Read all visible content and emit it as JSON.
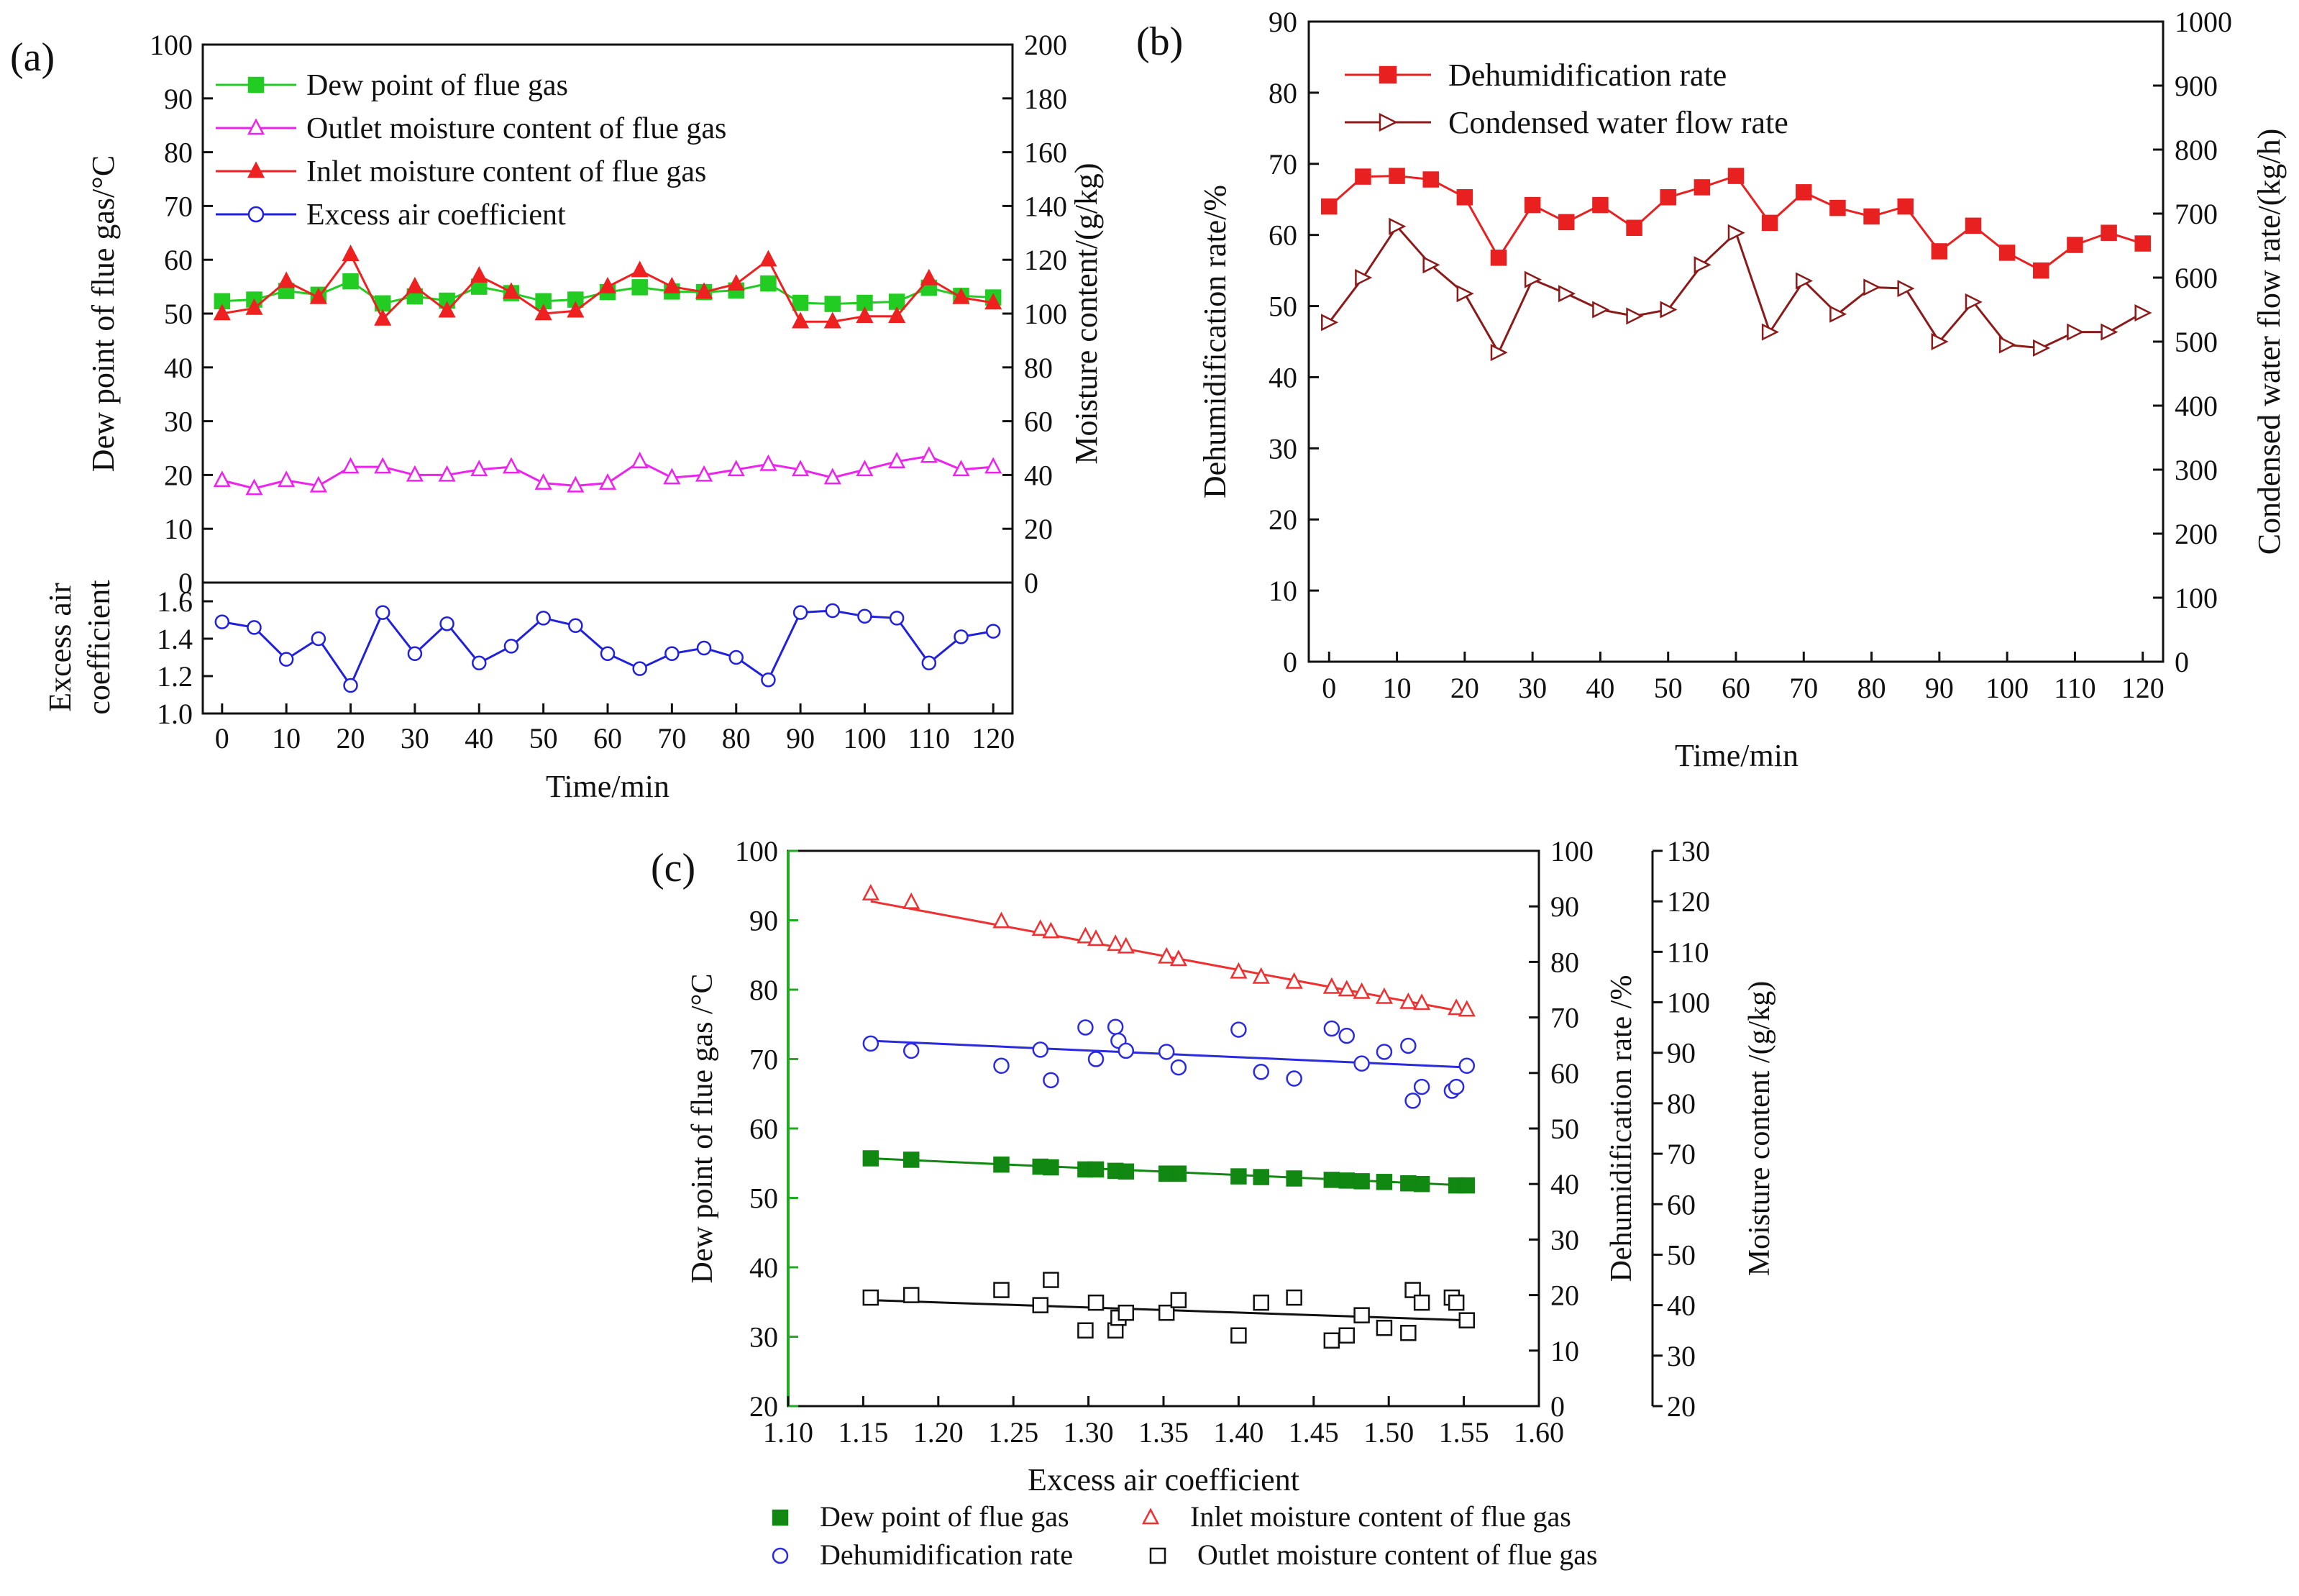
{
  "colors": {
    "dew": "#22cc22",
    "outlet": "#ee22ee",
    "inlet": "#ee2020",
    "excess": "#2020dd",
    "dehum": "#e82020",
    "condensed": "#8b1a1a",
    "c_dew": "#118811",
    "c_inlet": "#ee3030",
    "c_dehum": "#2a2ae0",
    "c_outlet": "#111111",
    "axis": "#111111",
    "c_leftaxis": "#22aa22"
  },
  "chart_data": [
    {
      "id": "a",
      "panel_label": "(a)",
      "type": "line",
      "x": [
        0,
        5,
        10,
        15,
        20,
        25,
        30,
        35,
        40,
        45,
        50,
        55,
        60,
        65,
        70,
        75,
        80,
        85,
        90,
        95,
        100,
        105,
        110,
        115,
        120
      ],
      "xlabel": "Time/min",
      "xticks": [
        "0",
        "10",
        "20",
        "30",
        "40",
        "50",
        "60",
        "70",
        "80",
        "90",
        "100",
        "110",
        "120"
      ],
      "xlim": [
        -3,
        123
      ],
      "top": {
        "ylabel_left": "Dew point of flue gas/°C",
        "ylabel_right": "Moisture content/(g/kg)",
        "ylim_left": [
          0,
          100
        ],
        "ylim_right": [
          0,
          200
        ],
        "yticks_left": [
          "0",
          "10",
          "20",
          "30",
          "40",
          "50",
          "60",
          "70",
          "80",
          "90",
          "100"
        ],
        "yticks_right": [
          "0",
          "20",
          "40",
          "60",
          "80",
          "100",
          "120",
          "140",
          "160",
          "180",
          "200"
        ],
        "series": [
          {
            "name": "Dew point of flue gas",
            "axis": "left",
            "marker": "square",
            "values": [
              52.3,
              52.6,
              54.2,
              53.5,
              56.0,
              51.9,
              53.2,
              52.4,
              55.0,
              53.8,
              52.3,
              52.6,
              54.0,
              54.9,
              54.1,
              54.0,
              54.3,
              55.6,
              52.0,
              51.8,
              52.0,
              52.2,
              54.8,
              53.3,
              53.0
            ]
          },
          {
            "name": "Outlet moisture content of flue gas",
            "axis": "right",
            "marker": "triangle-open",
            "values": [
              38,
              35,
              38,
              36,
              43,
              43,
              40,
              40,
              42,
              43,
              37,
              36,
              37,
              45,
              39,
              40,
              42,
              44,
              42,
              39,
              42,
              45,
              47,
              42,
              43
            ]
          },
          {
            "name": "Inlet moisture content of flue gas",
            "axis": "right",
            "marker": "triangle",
            "values": [
              100,
              102,
              112,
              106,
              122,
              98,
              110,
              101,
              114,
              108,
              100,
              101,
              110,
              116,
              110,
              108,
              111,
              120,
              97,
              97,
              99,
              99,
              113,
              106,
              104
            ]
          }
        ]
      },
      "bottom": {
        "ylabel": "Excess air coefficient",
        "ylim": [
          1.0,
          1.7
        ],
        "yticks": [
          "1.0",
          "1.2",
          "1.4",
          "1.6"
        ],
        "series": [
          {
            "name": "Excess air coefficient",
            "marker": "circle-open",
            "values": [
              1.49,
              1.46,
              1.29,
              1.4,
              1.15,
              1.54,
              1.32,
              1.48,
              1.27,
              1.36,
              1.51,
              1.47,
              1.32,
              1.24,
              1.32,
              1.35,
              1.3,
              1.18,
              1.54,
              1.55,
              1.52,
              1.51,
              1.27,
              1.41,
              1.44
            ]
          }
        ]
      },
      "legend": [
        "Dew point of flue gas",
        "Outlet moisture content of flue gas",
        "Inlet moisture content of flue gas",
        "Excess air coefficient"
      ]
    },
    {
      "id": "b",
      "panel_label": "(b)",
      "type": "line",
      "x": [
        0,
        5,
        10,
        15,
        20,
        25,
        30,
        35,
        40,
        45,
        50,
        55,
        60,
        65,
        70,
        75,
        80,
        85,
        90,
        95,
        100,
        105,
        110,
        115,
        120
      ],
      "xlabel": "Time/min",
      "xticks": [
        "0",
        "10",
        "20",
        "30",
        "40",
        "50",
        "60",
        "70",
        "80",
        "90",
        "100",
        "110",
        "120"
      ],
      "xlim": [
        -3,
        123
      ],
      "ylabel_left": "Dehumidification rate/%",
      "ylabel_right": "Condensed water flow rate/(kg/h)",
      "ylim_left": [
        0,
        90
      ],
      "ylim_right": [
        0,
        1000
      ],
      "yticks_left": [
        "0",
        "10",
        "20",
        "30",
        "40",
        "50",
        "60",
        "70",
        "80",
        "90"
      ],
      "yticks_right": [
        "0",
        "100",
        "200",
        "300",
        "400",
        "500",
        "600",
        "700",
        "800",
        "900",
        "1000"
      ],
      "series": [
        {
          "name": "Dehumidification rate",
          "axis": "left",
          "marker": "square",
          "values": [
            64.0,
            68.2,
            68.3,
            67.8,
            65.3,
            56.8,
            64.2,
            61.8,
            64.2,
            61.0,
            65.3,
            66.7,
            68.3,
            61.7,
            66.0,
            63.8,
            62.6,
            64.0,
            57.7,
            61.3,
            57.5,
            55.0,
            58.6,
            60.3,
            58.8
          ]
        },
        {
          "name": "Condensed water flow rate",
          "axis": "right",
          "marker": "triangle-right-open",
          "values": [
            530,
            600,
            680,
            620,
            575,
            483,
            597,
            575,
            550,
            540,
            550,
            620,
            670,
            515,
            595,
            543,
            585,
            583,
            500,
            562,
            495,
            490,
            515,
            515,
            545
          ]
        }
      ],
      "legend": [
        "Dehumidification rate",
        "Condensed water flow rate"
      ]
    },
    {
      "id": "c",
      "panel_label": "(c)",
      "type": "scatter",
      "xlabel": "Excess air coefficient",
      "xlim": [
        1.1,
        1.6
      ],
      "xticks": [
        "1.10",
        "1.15",
        "1.20",
        "1.25",
        "1.30",
        "1.35",
        "1.40",
        "1.45",
        "1.50",
        "1.55",
        "1.60"
      ],
      "ylabel_left": "Dew point of flue gas /°C",
      "ylabel_mid": "Dehumidification rate /%",
      "ylabel_right": "Moisture content /(g/kg)",
      "ylim_left": [
        20,
        100
      ],
      "ylim_mid": [
        0,
        100
      ],
      "ylim_right": [
        20,
        130
      ],
      "yticks_left": [
        "20",
        "30",
        "40",
        "50",
        "60",
        "70",
        "80",
        "90",
        "100"
      ],
      "yticks_mid": [
        "0",
        "10",
        "20",
        "30",
        "40",
        "50",
        "60",
        "70",
        "80",
        "90",
        "100"
      ],
      "yticks_right": [
        "20",
        "30",
        "40",
        "50",
        "60",
        "70",
        "80",
        "90",
        "100",
        "110",
        "120",
        "130"
      ],
      "series": [
        {
          "name": "Dew point of flue gas",
          "axis": "left",
          "marker": "square",
          "x": [
            1.155,
            1.182,
            1.242,
            1.268,
            1.275,
            1.298,
            1.305,
            1.318,
            1.325,
            1.352,
            1.36,
            1.4,
            1.415,
            1.437,
            1.462,
            1.472,
            1.482,
            1.497,
            1.513,
            1.522,
            1.545,
            1.552
          ],
          "y": [
            55.7,
            55.5,
            54.8,
            54.5,
            54.4,
            54.1,
            54.1,
            53.9,
            53.8,
            53.5,
            53.5,
            53.1,
            53.0,
            52.8,
            52.6,
            52.5,
            52.4,
            52.3,
            52.1,
            52.0,
            51.8,
            51.8
          ],
          "fit": [
            [
              1.155,
              55.7
            ],
            [
              1.552,
              51.8
            ]
          ]
        },
        {
          "name": "Inlet moisture content of flue gas",
          "axis": "right",
          "marker": "triangle-open",
          "x": [
            1.155,
            1.182,
            1.242,
            1.268,
            1.275,
            1.298,
            1.305,
            1.318,
            1.325,
            1.352,
            1.36,
            1.4,
            1.415,
            1.437,
            1.462,
            1.472,
            1.482,
            1.497,
            1.513,
            1.522,
            1.545,
            1.552
          ],
          "y": [
            121.5,
            119.8,
            116.0,
            114.5,
            114.0,
            113.0,
            112.5,
            111.5,
            111.0,
            109.0,
            108.5,
            106.0,
            105.0,
            104.0,
            103.0,
            102.5,
            102.0,
            101.0,
            100.0,
            99.8,
            98.8,
            98.5
          ],
          "fit": [
            [
              1.155,
              120.0
            ],
            [
              1.552,
              98.0
            ]
          ]
        },
        {
          "name": "Dehumidification rate",
          "axis": "mid",
          "marker": "circle-open",
          "x": [
            1.155,
            1.182,
            1.242,
            1.268,
            1.275,
            1.298,
            1.305,
            1.318,
            1.32,
            1.325,
            1.352,
            1.36,
            1.4,
            1.415,
            1.437,
            1.462,
            1.472,
            1.482,
            1.497,
            1.513,
            1.516,
            1.522,
            1.542,
            1.545,
            1.552
          ],
          "y": [
            65.3,
            64.0,
            61.3,
            64.2,
            58.7,
            68.2,
            62.5,
            68.3,
            65.8,
            64.0,
            63.8,
            61.0,
            67.8,
            60.2,
            59.0,
            68.0,
            66.7,
            61.7,
            63.8,
            64.9,
            55.0,
            57.5,
            56.8,
            57.5,
            61.3
          ],
          "fit": [
            [
              1.155,
              65.8
            ],
            [
              1.552,
              61.0
            ]
          ]
        },
        {
          "name": "Outlet moisture content of flue gas",
          "axis": "right",
          "marker": "square-open",
          "x": [
            1.155,
            1.182,
            1.242,
            1.268,
            1.275,
            1.298,
            1.305,
            1.318,
            1.32,
            1.325,
            1.352,
            1.36,
            1.4,
            1.415,
            1.437,
            1.462,
            1.472,
            1.482,
            1.497,
            1.513,
            1.516,
            1.522,
            1.542,
            1.545,
            1.552
          ],
          "y": [
            41.5,
            42.0,
            43.0,
            40.0,
            45.0,
            35.0,
            40.5,
            35.0,
            37.5,
            38.5,
            38.5,
            41.0,
            34.0,
            40.5,
            41.5,
            33.0,
            34.0,
            38.0,
            35.5,
            34.5,
            43.0,
            40.5,
            41.5,
            40.5,
            37.0
          ],
          "fit": [
            [
              1.155,
              41.0
            ],
            [
              1.552,
              37.0
            ]
          ]
        }
      ],
      "legend": [
        "Dew point of flue gas",
        "Inlet moisture content of flue gas",
        "Dehumidification rate",
        "Outlet moisture content of flue gas"
      ]
    }
  ]
}
